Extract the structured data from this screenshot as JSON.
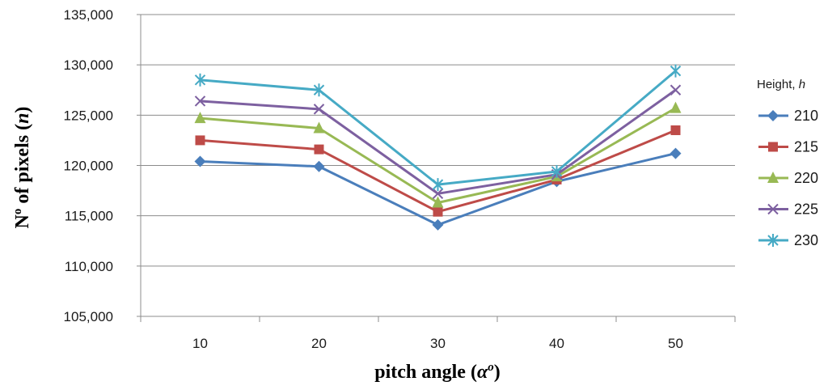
{
  "chart_data": {
    "type": "line",
    "title": "",
    "xlabel_main": "pitch angle (",
    "xlabel_symbol": "α",
    "xlabel_degree": "o",
    "xlabel_close": ")",
    "ylabel_main": "N",
    "ylabel_sup": "o",
    "ylabel_mid": " of pixels (",
    "ylabel_var": "n",
    "ylabel_close": ")",
    "x": [
      10,
      20,
      30,
      40,
      50
    ],
    "x_tick_labels": [
      "10",
      "20",
      "30",
      "40",
      "50"
    ],
    "ylim": [
      105000,
      135000
    ],
    "y_ticks": [
      105000,
      110000,
      115000,
      120000,
      125000,
      130000,
      135000
    ],
    "y_tick_labels": [
      "105,000",
      "110,000",
      "115,000",
      "120,000",
      "125,000",
      "130,000",
      "135,000"
    ],
    "grid": true,
    "legend_position": "right",
    "legend_title_main": "Height, ",
    "legend_title_var": "h",
    "series": [
      {
        "name": "210",
        "color": "#4a7ebb",
        "marker": "diamond",
        "values": [
          120400,
          119900,
          114100,
          118400,
          121200
        ]
      },
      {
        "name": "215",
        "color": "#be4b48",
        "marker": "square",
        "values": [
          122500,
          121600,
          115400,
          118600,
          123500
        ]
      },
      {
        "name": "220",
        "color": "#98b954",
        "marker": "triangle",
        "values": [
          124700,
          123700,
          116300,
          118900,
          125700
        ]
      },
      {
        "name": "225",
        "color": "#7d60a0",
        "marker": "x",
        "values": [
          126400,
          125600,
          117200,
          119100,
          127500
        ]
      },
      {
        "name": "230",
        "color": "#46aac5",
        "marker": "asterisk",
        "values": [
          128500,
          127500,
          118100,
          119400,
          129400
        ]
      }
    ]
  }
}
